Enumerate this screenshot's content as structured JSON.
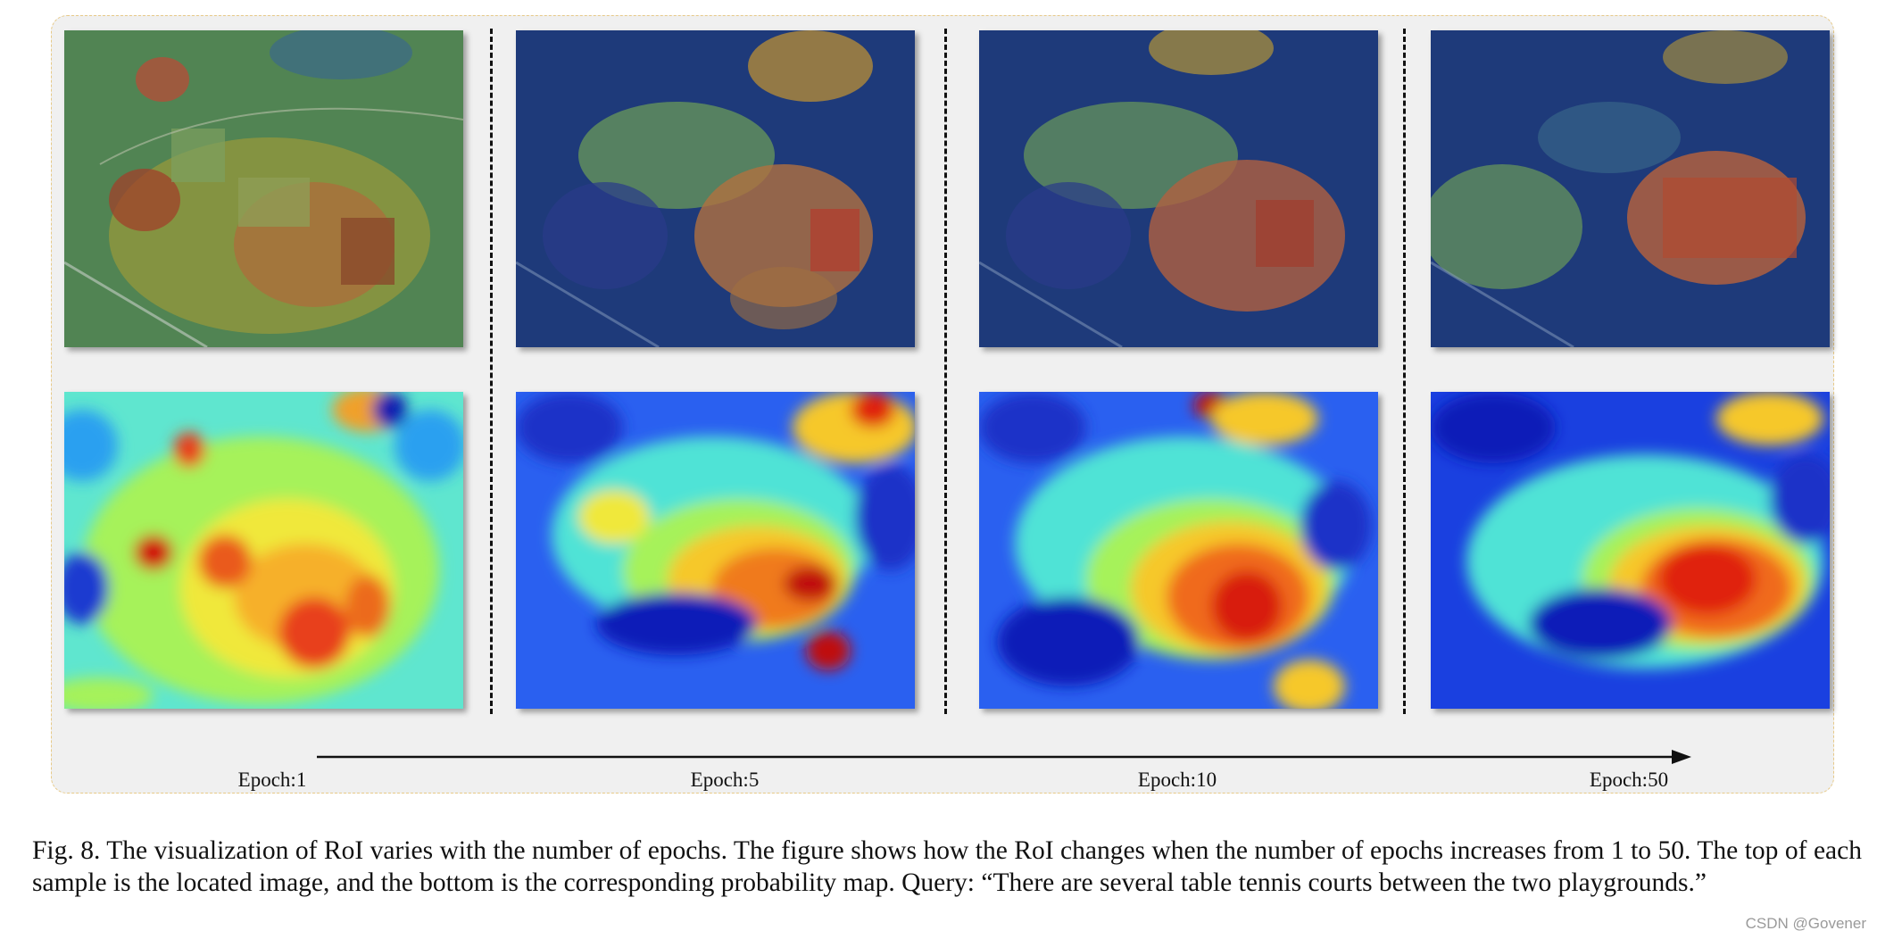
{
  "figure": {
    "epochs": [
      "Epoch:1",
      "Epoch:5",
      "Epoch:10",
      "Epoch:50"
    ],
    "caption": "Fig. 8.  The visualization of RoI varies with the number of epochs. The figure shows how the RoI changes when the number of epochs increases from 1 to 50. The top of each sample is the located image, and the bottom is the corresponding probability map. Query: “There are several table tennis courts between the two playgrounds.”"
  },
  "watermark": "CSDN @Govener",
  "colors": {
    "panel_background": "#f0f0f0",
    "panel_border": "#e7c987",
    "jet_low": "#0a1cb8",
    "jet_mid": "#4fe3d6",
    "jet_high": "#e02010"
  }
}
